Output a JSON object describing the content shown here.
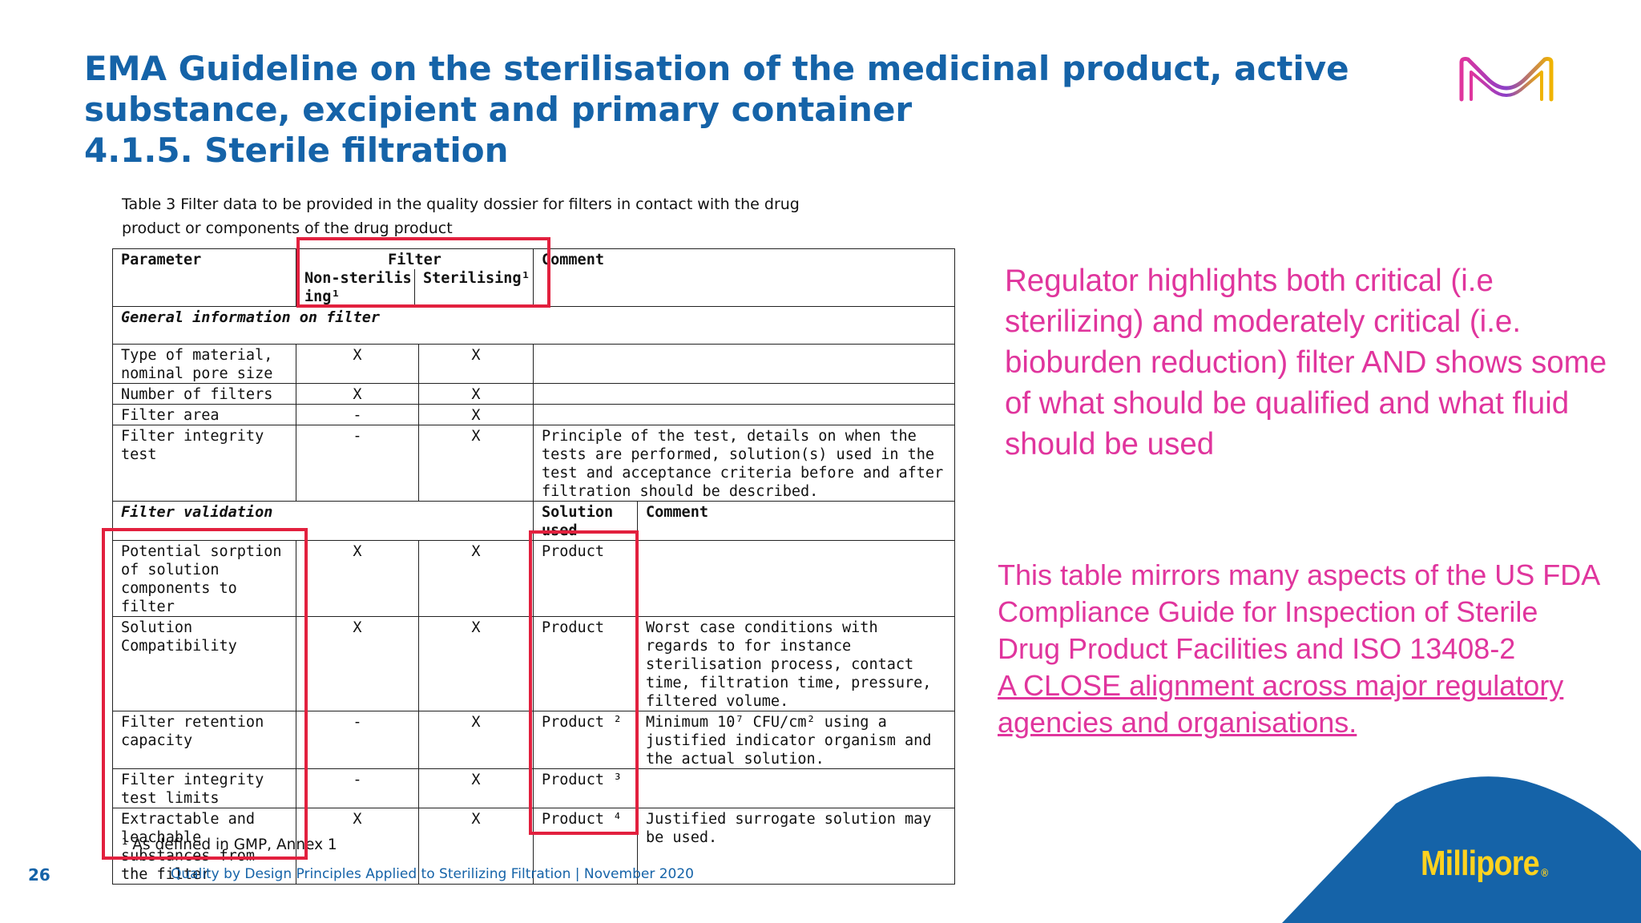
{
  "slide": {
    "title_lines": [
      "EMA Guideline on the sterilisation of the medicinal product, active",
      "substance, excipient and primary container",
      "4.1.5.  Sterile filtration"
    ],
    "page_number": "26",
    "footer_text": "Quality by Design Principles Applied to Sterilizing Filtration | November 2020",
    "brand": {
      "name": "Millipore",
      "mark": "®"
    },
    "logo_icon": "merck-m-logo-icon"
  },
  "table": {
    "caption_lines": [
      "Table 3 Filter data to be provided in the quality dossier for filters in contact with the drug",
      "product or components of the drug product"
    ],
    "header": {
      "parameter": "Parameter",
      "filter": "Filter",
      "non_sterilising": "Non-sterilising¹",
      "sterilising": "Sterilising¹",
      "comment": "Comment"
    },
    "section_general": "General information on filter",
    "general_rows": [
      {
        "parameter": "Type of material, nominal pore size",
        "non": "X",
        "ster": "X",
        "comment": ""
      },
      {
        "parameter": "Number of filters",
        "non": "X",
        "ster": "X",
        "comment": ""
      },
      {
        "parameter": "Filter area",
        "non": "-",
        "ster": "X",
        "comment": ""
      },
      {
        "parameter": "Filter integrity test",
        "non": "-",
        "ster": "X",
        "comment": "Principle of the test, details on when the tests are performed, solution(s) used in the test and acceptance criteria before and after filtration should be described."
      }
    ],
    "section_validation": "Filter validation",
    "validation_header": {
      "solution": "Solution used",
      "comment": "Comment"
    },
    "validation_rows": [
      {
        "parameter": "Potential sorption of solution components to filter",
        "non": "X",
        "ster": "X",
        "solution": "Product",
        "comment": ""
      },
      {
        "parameter": "Solution Compatibility",
        "non": "X",
        "ster": "X",
        "solution": "Product",
        "comment": "Worst case conditions with regards to for instance sterilisation process, contact time, filtration time, pressure, filtered volume."
      },
      {
        "parameter": "Filter retention capacity",
        "non": "-",
        "ster": "X",
        "solution": "Product ²",
        "comment": "Minimum 10⁷ CFU/cm² using a justified indicator organism and the actual solution."
      },
      {
        "parameter": "Filter integrity test limits",
        "non": "-",
        "ster": "X",
        "solution": "Product ³",
        "comment": ""
      },
      {
        "parameter": "Extractable and leachable substances from the filter",
        "non": "X",
        "ster": "X",
        "solution": "Product ⁴",
        "comment": "Justified surrogate solution may be used."
      }
    ],
    "footnote": "¹ As defined in GMP, Annex 1"
  },
  "notes": {
    "regulator_note": "Regulator highlights both critical (i.e sterilizing) and moderately critical (i.e. bioburden reduction) filter AND shows some of what should be qualified and what fluid should be used",
    "fda_note": "This table mirrors many aspects of the US FDA Compliance Guide for Inspection of Sterile Drug Product Facilities and ISO 13408-2",
    "alignment_note": "A CLOSE alignment across major regulatory agencies and organisations."
  },
  "colors": {
    "title_blue": "#1563a8",
    "note_pink": "#e0359d",
    "highlight_red": "#e2203e",
    "brand_yellow": "#ffd21f",
    "brand_blue": "#1563a8"
  }
}
